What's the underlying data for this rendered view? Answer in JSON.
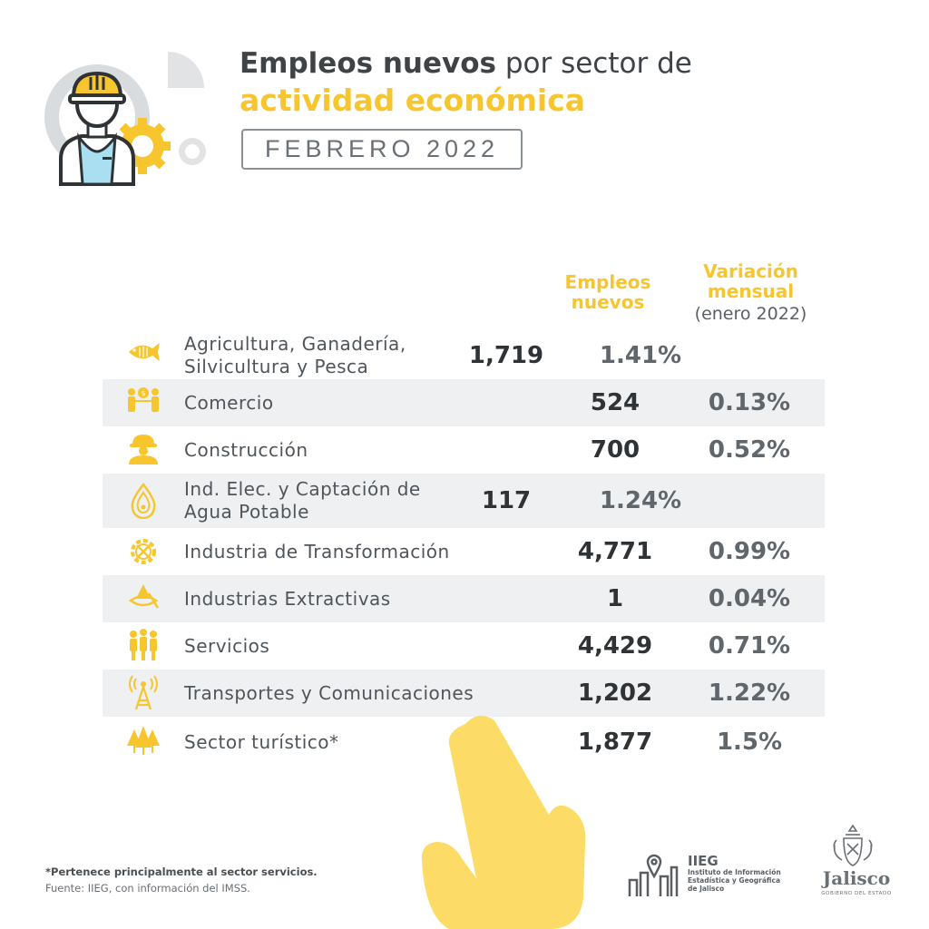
{
  "header": {
    "title_bold": "Empleos nuevos",
    "title_rest": " por sector de",
    "title_line2": "actividad económica",
    "period": "FEBRERO 2022"
  },
  "columns": {
    "jobs_header": "Empleos nuevos",
    "variation_header": "Variación mensual",
    "variation_sub": "(enero 2022)"
  },
  "colors": {
    "accent": "#f7c52e",
    "shaded_row": "#eef0f2",
    "dark_text": "#2f3336"
  },
  "chart_data": {
    "type": "table",
    "title": "Empleos nuevos por sector de actividad económica",
    "subtitle": "FEBRERO 2022",
    "columns": [
      "Empleos nuevos",
      "Variación mensual (enero 2022)"
    ],
    "rows": [
      {
        "sector": "Agricultura, Ganadería, Silvicultura y Pesca",
        "empleos": "1,719",
        "variacion": "1.41%",
        "icon": "fish-icon"
      },
      {
        "sector": "Comercio",
        "empleos": "524",
        "variacion": "0.13%",
        "icon": "commerce-people-icon"
      },
      {
        "sector": "Construcción",
        "empleos": "700",
        "variacion": "0.52%",
        "icon": "construction-worker-icon"
      },
      {
        "sector": "Ind. Elec. y Captación de Agua Potable",
        "empleos": "117",
        "variacion": "1.24%",
        "icon": "water-drop-icon"
      },
      {
        "sector": "Industria de Transformación",
        "empleos": "4,771",
        "variacion": "0.99%",
        "icon": "gear-tools-icon"
      },
      {
        "sector": "Industrias Extractivas",
        "empleos": "1",
        "variacion": "0.04%",
        "icon": "mining-icon"
      },
      {
        "sector": "Servicios",
        "empleos": "4,429",
        "variacion": "0.71%",
        "icon": "people-group-icon"
      },
      {
        "sector": "Transportes y Comunicaciones",
        "empleos": "1,202",
        "variacion": "1.22%",
        "icon": "antenna-tower-icon"
      },
      {
        "sector": "Sector turístico*",
        "empleos": "1,877",
        "variacion": "1.5%",
        "icon": "trees-icon"
      }
    ]
  },
  "footer": {
    "note": "*Pertenece principalmente al sector servicios.",
    "source": "Fuente: IIEG, con información del IMSS.",
    "iieg_name": "IIEG",
    "iieg_full": "Instituto de Información Estadística y Geográfica de Jalisco",
    "jalisco_name": "Jalisco",
    "jalisco_sub": "GOBIERNO DEL ESTADO"
  }
}
